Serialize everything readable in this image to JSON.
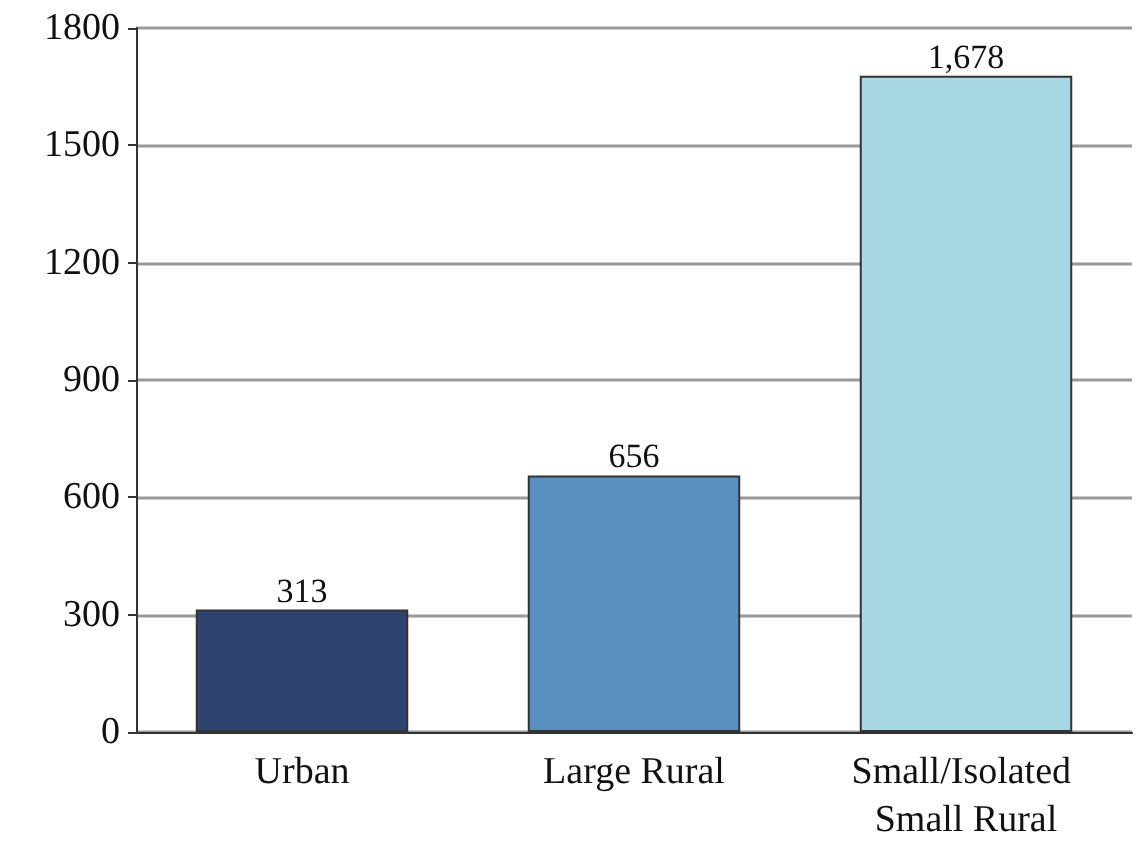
{
  "chart_data": {
    "type": "bar",
    "categories": [
      "Urban",
      "Large Rural",
      "Small/Isolated Small Rural"
    ],
    "values": [
      313,
      656,
      1678
    ],
    "colors": [
      "#2e4370",
      "#5a8fc0",
      "#a8d8e6"
    ],
    "value_labels": [
      "313",
      "656",
      "1,678"
    ],
    "ylim": [
      0,
      1800
    ],
    "yticks": [
      0,
      300,
      600,
      900,
      1200,
      1500,
      1800
    ],
    "grid": "y"
  }
}
